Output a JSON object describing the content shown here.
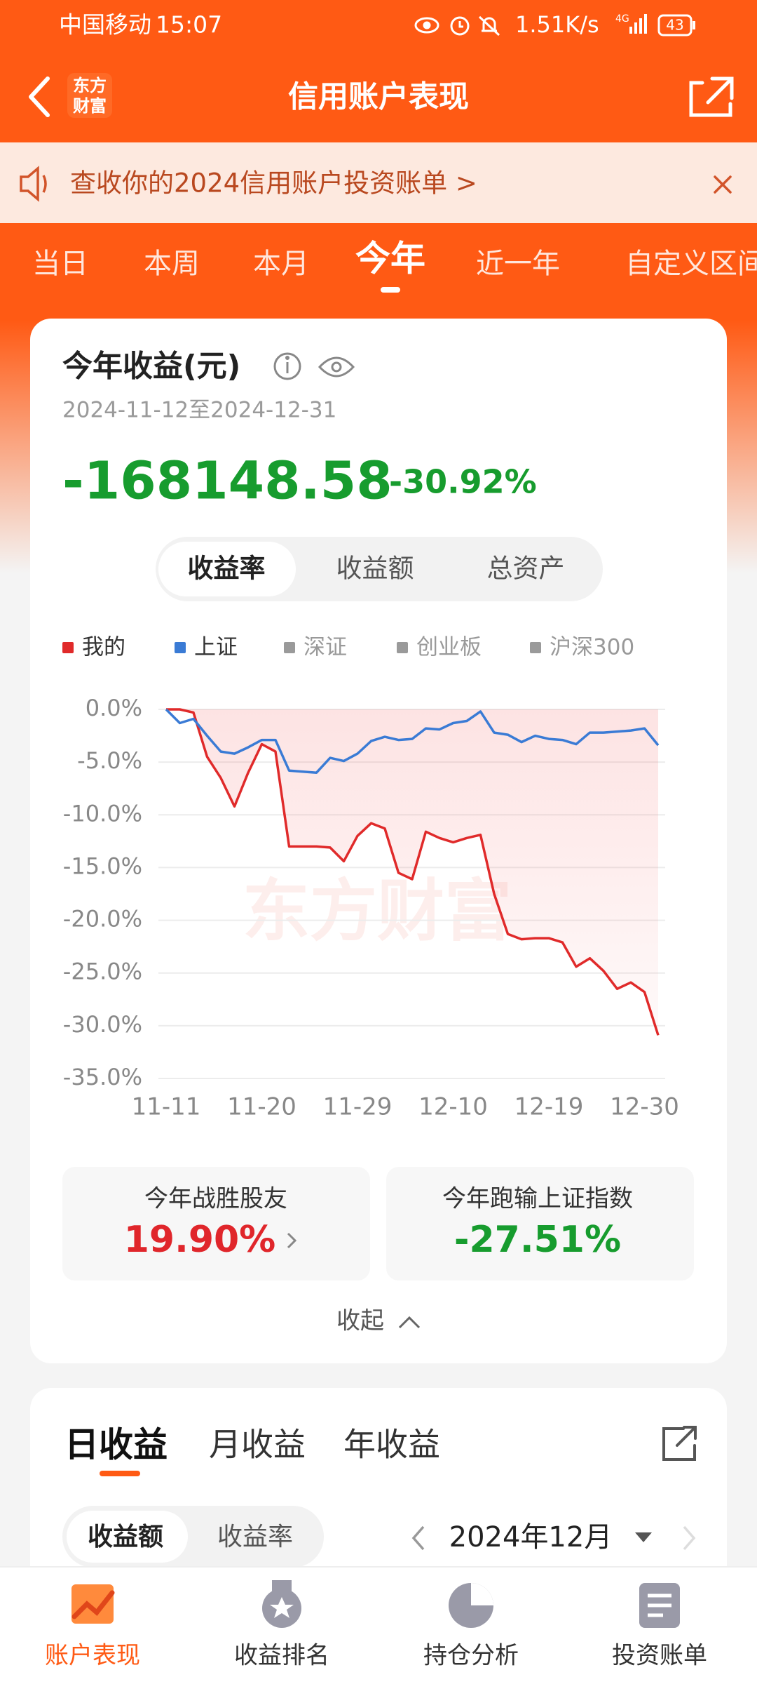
{
  "status_bar": {
    "carrier": "中国移动",
    "time": "15:07",
    "speed": "1.51K/s",
    "network": "4G",
    "battery": "43"
  },
  "nav": {
    "logo": [
      "东方",
      "财富"
    ],
    "title": "信用账户表现"
  },
  "banner": {
    "text": "查收你的2024信用账户投资账单 >"
  },
  "period_tabs": {
    "items": [
      "当日",
      "本周",
      "本月",
      "今年",
      "近一年",
      "自定义区间"
    ],
    "active": 3
  },
  "summary": {
    "title": "今年收益(元)",
    "date_range": "2024-11-12至2024-12-31",
    "amount": "-168148.58",
    "return_pct": "-30.92%",
    "segments": [
      "收益率",
      "收益额",
      "总资产"
    ],
    "active_segment": 0
  },
  "chart_data": {
    "type": "line",
    "watermark": "东方财富",
    "categories": [
      "11-11",
      null,
      null,
      null,
      null,
      null,
      null,
      "11-20",
      null,
      null,
      null,
      null,
      null,
      null,
      "11-29",
      null,
      null,
      null,
      null,
      null,
      null,
      "12-10",
      null,
      null,
      null,
      null,
      null,
      null,
      "12-19",
      null,
      null,
      null,
      null,
      null,
      null,
      "12-30",
      null
    ],
    "series": [
      {
        "name": "我的",
        "color": "#e02a2a",
        "enabled": true,
        "values": [
          0,
          0,
          -0.3,
          -4.5,
          -6.5,
          -9.2,
          -6.0,
          -3.3,
          -4.0,
          -13.0,
          -13.0,
          -13.0,
          -13.1,
          -14.4,
          -12.0,
          -10.8,
          -11.3,
          -15.5,
          -16.1,
          -11.6,
          -12.2,
          -12.6,
          -12.2,
          -11.9,
          -17.5,
          -21.3,
          -21.8,
          -21.7,
          -21.7,
          -22.1,
          -24.4,
          -23.6,
          -24.8,
          -26.5,
          -25.9,
          -26.8,
          -30.9
        ]
      },
      {
        "name": "上证",
        "color": "#3a7bd5",
        "enabled": true,
        "values": [
          0,
          -1.3,
          -0.9,
          -2.5,
          -4.0,
          -4.2,
          -3.6,
          -2.9,
          -2.9,
          -5.8,
          -5.9,
          -6.0,
          -4.6,
          -4.9,
          -4.2,
          -3.0,
          -2.6,
          -2.9,
          -2.8,
          -1.8,
          -1.9,
          -1.3,
          -1.1,
          -0.2,
          -2.2,
          -2.4,
          -3.1,
          -2.5,
          -2.8,
          -2.9,
          -3.3,
          -2.2,
          -2.2,
          -2.1,
          -2.0,
          -1.8,
          -3.4
        ]
      },
      {
        "name": "深证",
        "color": "#9a9a9a",
        "enabled": false
      },
      {
        "name": "创业板",
        "color": "#9a9a9a",
        "enabled": false
      },
      {
        "name": "沪深300",
        "color": "#9a9a9a",
        "enabled": false
      }
    ],
    "ylim": [
      -35,
      0
    ],
    "yticks": [
      {
        "value": 0,
        "label": "0.0%"
      },
      {
        "value": -5,
        "label": "-5.0%"
      },
      {
        "value": -10,
        "label": "-10.0%"
      },
      {
        "value": -15,
        "label": "-15.0%"
      },
      {
        "value": -20,
        "label": "-20.0%"
      },
      {
        "value": -25,
        "label": "-25.0%"
      },
      {
        "value": -30,
        "label": "-30.0%"
      },
      {
        "value": -35,
        "label": "-35.0%"
      }
    ],
    "grid": true
  },
  "stats": [
    {
      "label": "今年战胜股友",
      "value": "19.90%"
    },
    {
      "label": "今年跑输上证指数",
      "value": "-27.51%"
    }
  ],
  "collapse": "收起",
  "earnings": {
    "tabs": [
      "日收益",
      "月收益",
      "年收益"
    ],
    "active": 0,
    "segments": [
      "收益额",
      "收益率"
    ],
    "active_segment": 0,
    "month": "2024年12月"
  },
  "bottom_nav": {
    "items": [
      "账户表现",
      "收益排名",
      "持仓分析",
      "投资账单"
    ],
    "active": 0
  }
}
